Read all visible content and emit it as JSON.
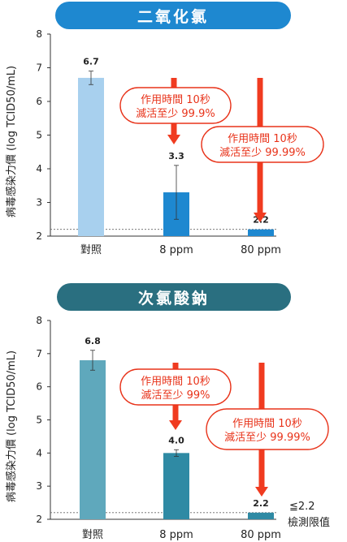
{
  "chart_data": [
    {
      "type": "bar",
      "title": "二氧化氯",
      "ylabel": "病毒感染力價 (log TCID50/mL)",
      "ylim": [
        2,
        8
      ],
      "yticks": [
        2,
        3,
        4,
        5,
        6,
        7,
        8
      ],
      "categories": [
        "對照",
        "8 ppm",
        "80 ppm"
      ],
      "values": [
        6.7,
        3.3,
        2.2
      ],
      "value_labels": [
        "6.7",
        "3.3",
        "2.2"
      ],
      "errors": [
        0.2,
        0.8,
        0.0
      ],
      "bar_colors": [
        "#a8d0ee",
        "#1e88d0",
        "#1e88d0"
      ],
      "detection_limit": 2.2,
      "annotations": [
        {
          "line1": "作用時間 10秒",
          "line2": "滅活至少 99.9%"
        },
        {
          "line1": "作用時間 10秒",
          "line2": "滅活至少 99.99%"
        }
      ]
    },
    {
      "type": "bar",
      "title": "次氯酸鈉",
      "ylabel": "病毒感染力價 (log TCID50/mL)",
      "ylim": [
        2,
        8
      ],
      "yticks": [
        2,
        3,
        4,
        5,
        6,
        7,
        8
      ],
      "categories": [
        "對照",
        "8 ppm",
        "80 ppm"
      ],
      "values": [
        6.8,
        4.0,
        2.2
      ],
      "value_labels": [
        "6.8",
        "4.0",
        "2.2"
      ],
      "errors": [
        0.3,
        0.1,
        0.0
      ],
      "bar_colors": [
        "#5fa8bc",
        "#2f8aa4",
        "#2f8aa4"
      ],
      "detection_limit": 2.2,
      "detection_label_1": "≦2.2",
      "detection_label_2": "檢測限值",
      "annotations": [
        {
          "line1": "作用時間 10秒",
          "line2": "滅活至少 99%"
        },
        {
          "line1": "作用時間 10秒",
          "line2": "滅活至少 99.99%"
        }
      ]
    }
  ],
  "colors": {
    "callout": "#e8331a",
    "arrow": "#f03b20"
  }
}
